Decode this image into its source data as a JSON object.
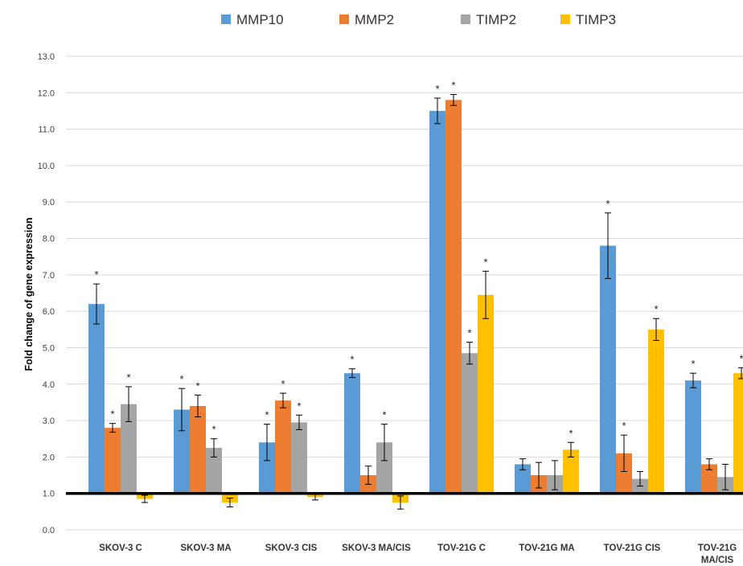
{
  "chart_data": {
    "type": "bar",
    "title": "",
    "xlabel": "",
    "ylabel": "Fold change of gene expression",
    "ylim": [
      0,
      13
    ],
    "yticks": [
      "0.0",
      "1.0",
      "2.0",
      "3.0",
      "4.0",
      "5.0",
      "6.0",
      "7.0",
      "8.0",
      "9.0",
      "10.0",
      "11.0",
      "12.0",
      "13.0"
    ],
    "baseline": 1.0,
    "grid": true,
    "legend_position": "top",
    "significance_marker": "*",
    "categories": [
      [
        "SKOV-3 C"
      ],
      [
        "SKOV-3 MA"
      ],
      [
        "SKOV-3 CIS"
      ],
      [
        "SKOV-3 MA/CIS"
      ],
      [
        "TOV-21G C"
      ],
      [
        "TOV-21G MA"
      ],
      [
        "TOV-21G CIS"
      ],
      [
        "TOV-21G",
        "MA/CIS"
      ]
    ],
    "series": [
      {
        "name": "MMP10",
        "color": "#5b9bd5",
        "values": [
          6.2,
          3.3,
          2.4,
          4.3,
          11.5,
          1.8,
          7.8,
          4.1
        ],
        "errors": [
          0.55,
          0.58,
          0.5,
          0.12,
          0.35,
          0.15,
          0.9,
          0.2
        ],
        "significant": [
          true,
          true,
          true,
          true,
          true,
          false,
          true,
          true
        ]
      },
      {
        "name": "MMP2",
        "color": "#ed7d31",
        "values": [
          2.8,
          3.4,
          3.55,
          1.5,
          11.8,
          1.5,
          2.1,
          1.8
        ],
        "errors": [
          0.12,
          0.3,
          0.2,
          0.25,
          0.15,
          0.35,
          0.5,
          0.15
        ],
        "significant": [
          true,
          true,
          true,
          false,
          true,
          false,
          true,
          false
        ]
      },
      {
        "name": "TIMP2",
        "color": "#a5a5a5",
        "values": [
          3.45,
          2.25,
          2.95,
          2.4,
          4.85,
          1.5,
          1.4,
          1.45
        ],
        "errors": [
          0.48,
          0.25,
          0.2,
          0.5,
          0.3,
          0.4,
          0.2,
          0.35
        ],
        "significant": [
          true,
          true,
          true,
          true,
          true,
          false,
          false,
          false
        ]
      },
      {
        "name": "TIMP3",
        "color": "#ffc000",
        "values": [
          0.85,
          0.75,
          0.9,
          0.75,
          6.45,
          2.2,
          5.5,
          4.3
        ],
        "errors": [
          0.1,
          0.12,
          0.08,
          0.18,
          0.65,
          0.2,
          0.3,
          0.15
        ],
        "significant": [
          false,
          false,
          false,
          false,
          true,
          true,
          true,
          true
        ]
      }
    ]
  }
}
